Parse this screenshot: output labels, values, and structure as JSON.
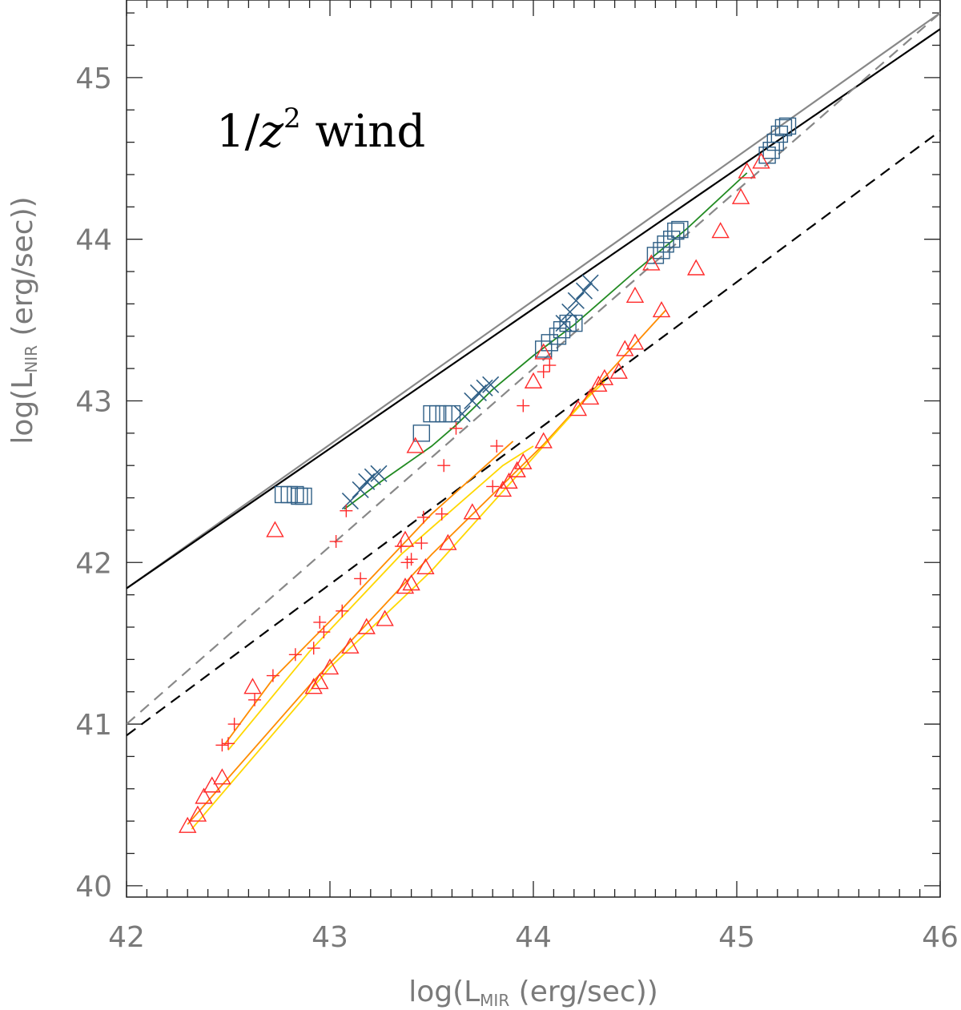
{
  "chart_data": {
    "type": "scatter",
    "xlabel": {
      "prefix": "log(L",
      "sub": "MIR",
      "suffix": " (erg/sec))"
    },
    "ylabel": {
      "prefix": "log(L",
      "sub": "NIR",
      "suffix": " (erg/sec))"
    },
    "annotation": {
      "prefix": "1/",
      "var": "z",
      "sup": "2",
      "suffix": " wind"
    },
    "xlim": [
      42,
      46
    ],
    "ylim": [
      39.93,
      45.48
    ],
    "xticks": [
      42,
      43,
      44,
      45,
      46
    ],
    "yticks": [
      40,
      41,
      42,
      43,
      44,
      45
    ],
    "reference_lines": [
      {
        "name": "gray-solid",
        "color": "#888888",
        "dash": false,
        "points": [
          [
            42,
            41.84
          ],
          [
            46,
            45.4
          ]
        ]
      },
      {
        "name": "black-solid",
        "color": "#000000",
        "dash": false,
        "points": [
          [
            42,
            41.84
          ],
          [
            46,
            45.3
          ]
        ]
      },
      {
        "name": "gray-dashed",
        "color": "#888888",
        "dash": true,
        "points": [
          [
            42,
            41.0
          ],
          [
            46,
            45.4
          ]
        ]
      },
      {
        "name": "black-dashed",
        "color": "#000000",
        "dash": true,
        "points": [
          [
            42,
            40.93
          ],
          [
            46,
            44.67
          ]
        ]
      }
    ],
    "model_lines": [
      {
        "name": "green-track",
        "color": "#228b22",
        "points": [
          [
            43.07,
            42.33
          ],
          [
            43.25,
            42.5
          ],
          [
            43.5,
            42.72
          ],
          [
            43.62,
            42.85
          ],
          [
            43.8,
            43.07
          ],
          [
            44.0,
            43.28
          ],
          [
            44.2,
            43.47
          ],
          [
            44.5,
            43.8
          ],
          [
            44.75,
            44.06
          ],
          [
            45.05,
            44.41
          ]
        ]
      },
      {
        "name": "orange-track-1",
        "color": "#ff8c00",
        "points": [
          [
            42.48,
            40.87
          ],
          [
            42.72,
            41.28
          ],
          [
            43.05,
            41.7
          ],
          [
            43.5,
            42.3
          ],
          [
            43.9,
            42.75
          ]
        ]
      },
      {
        "name": "yellow-track-1",
        "color": "#ffd700",
        "points": [
          [
            42.5,
            40.84
          ],
          [
            42.9,
            41.45
          ],
          [
            43.35,
            42.05
          ],
          [
            43.85,
            42.6
          ],
          [
            44.0,
            42.72
          ]
        ]
      },
      {
        "name": "orange-track-2",
        "color": "#ff8c00",
        "points": [
          [
            42.3,
            40.38
          ],
          [
            42.9,
            41.24
          ],
          [
            43.5,
            42.05
          ],
          [
            44.05,
            42.73
          ],
          [
            44.65,
            43.56
          ]
        ]
      },
      {
        "name": "yellow-track-2",
        "color": "#ffd700",
        "points": [
          [
            42.32,
            40.35
          ],
          [
            43.0,
            41.35
          ],
          [
            43.5,
            41.95
          ],
          [
            44.25,
            43.0
          ],
          [
            44.35,
            43.12
          ]
        ]
      }
    ],
    "series": [
      {
        "name": "squares",
        "marker": "square",
        "color": "#2f5f86",
        "points": [
          [
            42.77,
            42.42
          ],
          [
            42.8,
            42.42
          ],
          [
            42.83,
            42.42
          ],
          [
            42.85,
            42.41
          ],
          [
            42.87,
            42.41
          ],
          [
            43.45,
            42.8
          ],
          [
            43.5,
            42.92
          ],
          [
            43.53,
            42.92
          ],
          [
            43.56,
            42.92
          ],
          [
            43.6,
            42.92
          ],
          [
            44.05,
            43.32
          ],
          [
            44.08,
            43.36
          ],
          [
            44.12,
            43.4
          ],
          [
            44.14,
            43.44
          ],
          [
            44.17,
            43.48
          ],
          [
            44.2,
            43.48
          ],
          [
            44.6,
            43.9
          ],
          [
            44.63,
            43.93
          ],
          [
            44.65,
            43.97
          ],
          [
            44.68,
            44.0
          ],
          [
            44.7,
            44.05
          ],
          [
            44.72,
            44.06
          ],
          [
            45.15,
            44.52
          ],
          [
            45.17,
            44.55
          ],
          [
            45.19,
            44.6
          ],
          [
            45.21,
            44.65
          ],
          [
            45.23,
            44.69
          ],
          [
            45.25,
            44.7
          ]
        ]
      },
      {
        "name": "crosses",
        "marker": "x",
        "color": "#2f5f86",
        "points": [
          [
            43.1,
            42.38
          ],
          [
            43.15,
            42.45
          ],
          [
            43.18,
            42.5
          ],
          [
            43.21,
            42.53
          ],
          [
            43.24,
            42.55
          ],
          [
            43.65,
            42.92
          ],
          [
            43.7,
            43.0
          ],
          [
            43.73,
            43.05
          ],
          [
            43.76,
            43.08
          ],
          [
            43.79,
            43.1
          ],
          [
            44.15,
            43.48
          ],
          [
            44.18,
            43.55
          ],
          [
            44.21,
            43.62
          ],
          [
            44.25,
            43.68
          ],
          [
            44.28,
            43.73
          ]
        ]
      },
      {
        "name": "plus",
        "marker": "plus",
        "color": "#ff2a2a",
        "points": [
          [
            42.47,
            40.87
          ],
          [
            42.5,
            40.88
          ],
          [
            42.53,
            41.0
          ],
          [
            42.63,
            41.15
          ],
          [
            42.72,
            41.3
          ],
          [
            42.83,
            41.43
          ],
          [
            42.92,
            41.47
          ],
          [
            42.95,
            41.63
          ],
          [
            42.97,
            41.57
          ],
          [
            43.06,
            41.7
          ],
          [
            43.15,
            41.9
          ],
          [
            43.03,
            42.13
          ],
          [
            43.08,
            42.32
          ],
          [
            43.35,
            42.1
          ],
          [
            43.38,
            42.0
          ],
          [
            43.4,
            42.02
          ],
          [
            43.45,
            42.12
          ],
          [
            43.46,
            42.28
          ],
          [
            43.55,
            42.3
          ],
          [
            43.56,
            42.6
          ],
          [
            43.62,
            42.83
          ],
          [
            43.8,
            42.47
          ],
          [
            43.82,
            42.72
          ],
          [
            43.95,
            42.97
          ],
          [
            44.05,
            43.18
          ],
          [
            44.08,
            43.22
          ]
        ]
      },
      {
        "name": "triangles",
        "marker": "triangle",
        "color": "#ff2a2a",
        "points": [
          [
            42.3,
            40.37
          ],
          [
            42.35,
            40.44
          ],
          [
            42.38,
            40.55
          ],
          [
            42.42,
            40.62
          ],
          [
            42.47,
            40.67
          ],
          [
            42.62,
            41.23
          ],
          [
            42.73,
            42.2
          ],
          [
            42.92,
            41.23
          ],
          [
            42.95,
            41.26
          ],
          [
            43.0,
            41.35
          ],
          [
            43.1,
            41.48
          ],
          [
            43.18,
            41.6
          ],
          [
            43.27,
            41.65
          ],
          [
            43.37,
            41.85
          ],
          [
            43.4,
            41.87
          ],
          [
            43.47,
            41.97
          ],
          [
            43.37,
            42.14
          ],
          [
            43.42,
            42.72
          ],
          [
            43.58,
            42.12
          ],
          [
            43.7,
            42.31
          ],
          [
            43.85,
            42.45
          ],
          [
            43.88,
            42.5
          ],
          [
            43.92,
            42.57
          ],
          [
            43.95,
            42.62
          ],
          [
            44.05,
            42.75
          ],
          [
            44.22,
            42.95
          ],
          [
            44.28,
            43.02
          ],
          [
            44.32,
            43.1
          ],
          [
            44.35,
            43.14
          ],
          [
            44.42,
            43.18
          ],
          [
            44.45,
            43.32
          ],
          [
            44.5,
            43.36
          ],
          [
            44.63,
            43.56
          ],
          [
            44.0,
            43.12
          ],
          [
            44.05,
            43.3
          ],
          [
            44.5,
            43.65
          ],
          [
            44.58,
            43.85
          ],
          [
            44.8,
            43.82
          ],
          [
            44.92,
            44.05
          ],
          [
            45.02,
            44.26
          ],
          [
            45.05,
            44.42
          ],
          [
            45.12,
            44.48
          ]
        ]
      }
    ]
  }
}
